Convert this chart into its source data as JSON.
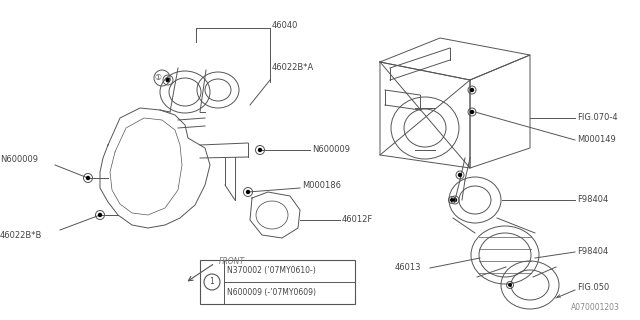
{
  "bg_color": "#ffffff",
  "line_color": "#555555",
  "text_color": "#444444",
  "fig_width": 6.4,
  "fig_height": 3.2,
  "dpi": 100,
  "watermark": "A070001203",
  "legend_note_line1": "N600009 (-’07MY0609)",
  "legend_note_line2": "N370002 (’07MY0610-)"
}
